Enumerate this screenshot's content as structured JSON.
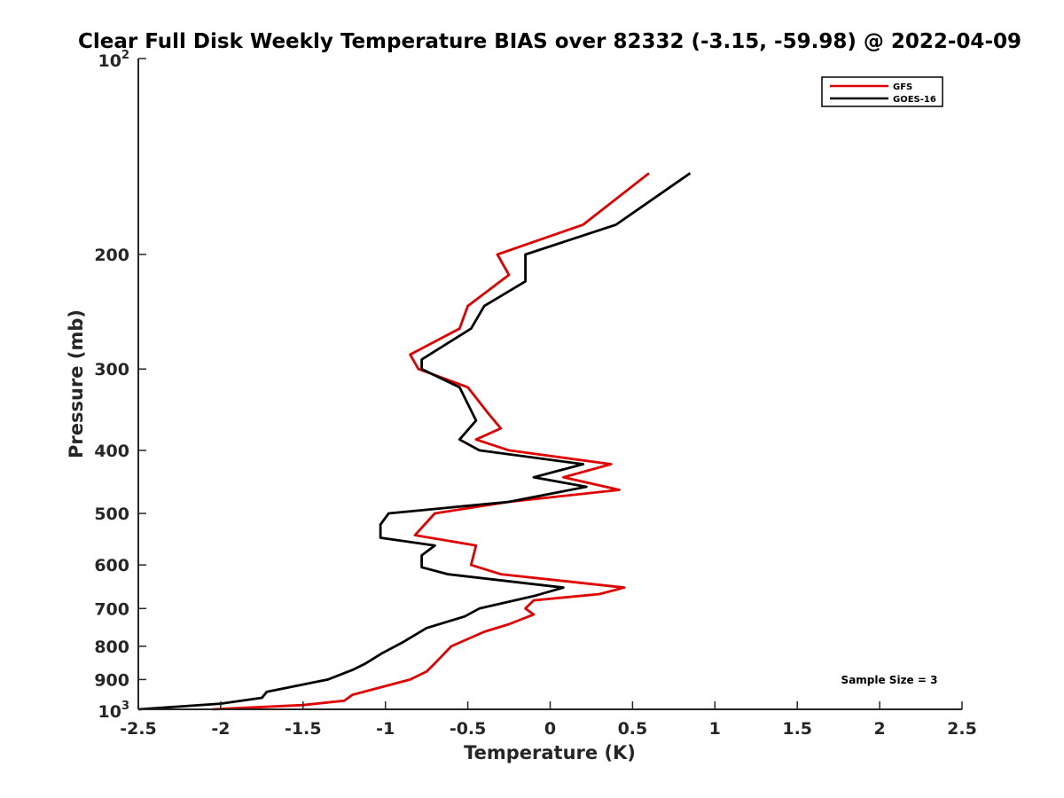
{
  "chart_data": {
    "type": "line",
    "title": "Clear Full Disk Weekly Temperature BIAS over 82332 (-3.15, -59.98) @ 2022-04-09",
    "xlabel": "Temperature (K)",
    "ylabel": "Pressure (mb)",
    "xlim": [
      -2.5,
      2.5
    ],
    "ylim": [
      100,
      1000
    ],
    "y_scale": "log",
    "y_reversed": true,
    "grid": false,
    "legend_position": "top-right",
    "x_ticks": [
      -2.5,
      -2,
      -1.5,
      -1,
      -0.5,
      0,
      0.5,
      1,
      1.5,
      2,
      2.5
    ],
    "x_tick_labels": [
      "-2.5",
      "-2",
      "-1.5",
      "-1",
      "-0.5",
      "0",
      "0.5",
      "1",
      "1.5",
      "2",
      "2.5"
    ],
    "y_ticks": [
      200,
      300,
      400,
      500,
      600,
      700,
      800,
      900
    ],
    "y_tick_labels": [
      "200",
      "300",
      "400",
      "500",
      "600",
      "700",
      "800",
      "900"
    ],
    "y_tick_top": {
      "base": "10",
      "exp": "2",
      "value": 100
    },
    "y_tick_bottom": {
      "base": "10",
      "exp": "3",
      "value": 1000
    },
    "annotation": "Sample Size = 3",
    "series": [
      {
        "name": "GFS",
        "color": "#e00000",
        "points": [
          [
            0.6,
            150
          ],
          [
            0.2,
            180
          ],
          [
            -0.32,
            200
          ],
          [
            -0.25,
            215
          ],
          [
            -0.5,
            240
          ],
          [
            -0.55,
            260
          ],
          [
            -0.85,
            285
          ],
          [
            -0.8,
            300
          ],
          [
            -0.5,
            320
          ],
          [
            -0.38,
            350
          ],
          [
            -0.3,
            370
          ],
          [
            -0.45,
            385
          ],
          [
            -0.25,
            400
          ],
          [
            0.37,
            420
          ],
          [
            0.08,
            440
          ],
          [
            0.42,
            460
          ],
          [
            -0.25,
            480
          ],
          [
            -0.7,
            500
          ],
          [
            -0.82,
            540
          ],
          [
            -0.45,
            560
          ],
          [
            -0.48,
            600
          ],
          [
            -0.3,
            620
          ],
          [
            0.45,
            650
          ],
          [
            0.3,
            665
          ],
          [
            -0.1,
            680
          ],
          [
            -0.15,
            700
          ],
          [
            -0.1,
            715
          ],
          [
            -0.25,
            740
          ],
          [
            -0.4,
            760
          ],
          [
            -0.6,
            800
          ],
          [
            -0.7,
            850
          ],
          [
            -0.75,
            875
          ],
          [
            -0.85,
            900
          ],
          [
            -1.2,
            950
          ],
          [
            -1.25,
            970
          ],
          [
            -1.5,
            985
          ],
          [
            -2.05,
            1000
          ]
        ]
      },
      {
        "name": "GOES-16",
        "color": "#000000",
        "points": [
          [
            0.85,
            150
          ],
          [
            0.4,
            180
          ],
          [
            -0.15,
            200
          ],
          [
            -0.15,
            220
          ],
          [
            -0.4,
            240
          ],
          [
            -0.48,
            260
          ],
          [
            -0.78,
            290
          ],
          [
            -0.78,
            300
          ],
          [
            -0.55,
            320
          ],
          [
            -0.45,
            360
          ],
          [
            -0.55,
            385
          ],
          [
            -0.43,
            400
          ],
          [
            0.2,
            420
          ],
          [
            -0.1,
            440
          ],
          [
            0.22,
            455
          ],
          [
            -0.25,
            480
          ],
          [
            -0.98,
            500
          ],
          [
            -1.03,
            520
          ],
          [
            -1.03,
            545
          ],
          [
            -0.7,
            560
          ],
          [
            -0.78,
            580
          ],
          [
            -0.78,
            605
          ],
          [
            -0.62,
            620
          ],
          [
            0.08,
            650
          ],
          [
            -0.1,
            670
          ],
          [
            -0.43,
            700
          ],
          [
            -0.52,
            720
          ],
          [
            -0.75,
            750
          ],
          [
            -0.9,
            790
          ],
          [
            -1.02,
            820
          ],
          [
            -1.12,
            850
          ],
          [
            -1.2,
            870
          ],
          [
            -1.35,
            900
          ],
          [
            -1.72,
            940
          ],
          [
            -1.75,
            960
          ],
          [
            -2.0,
            980
          ],
          [
            -2.5,
            1000
          ]
        ]
      }
    ]
  }
}
